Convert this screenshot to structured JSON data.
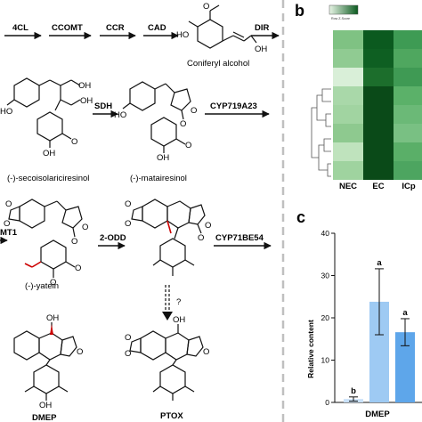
{
  "pathway": {
    "enzymes_top": [
      "4CL",
      "CCOMT",
      "CCR",
      "CAD",
      "DIR"
    ],
    "enzymes_mid": [
      "SDH",
      "CYP719A23"
    ],
    "enzymes_low": [
      "MT1",
      "2-ODD",
      "CYP71BE54"
    ],
    "question_mark": "?",
    "compounds": {
      "coniferyl": "Coniferyl alcohol",
      "secoiso": "(-)-secoisolariciresinol",
      "matairesinol": "(-)-matairesinol",
      "yatein": "(-)-yatein",
      "dmep": "DMEP",
      "ptox": "PTOX"
    },
    "colors": {
      "highlight_bond": "#cc0000",
      "ink": "#111111"
    }
  },
  "panel_b": {
    "label": "b",
    "legend_caption": "Row Z-Score",
    "columns": [
      "NEC",
      "EC",
      "ICp"
    ],
    "heatmap_colors": [
      [
        "#7fc283",
        "#0b5a1f",
        "#3e9b54"
      ],
      [
        "#90cb92",
        "#0e5f22",
        "#4fa75f"
      ],
      [
        "#d9efd8",
        "#1c6e2c",
        "#3f9a54"
      ],
      [
        "#a9d8a9",
        "#0a4a18",
        "#5bb169"
      ],
      [
        "#a1d4a1",
        "#0a4a18",
        "#6bb977"
      ],
      [
        "#8ec98f",
        "#0a4a18",
        "#79c083"
      ],
      [
        "#bfe3bd",
        "#0a4a18",
        "#5aaf68"
      ],
      [
        "#9fd39f",
        "#0a4a18",
        "#4da560"
      ]
    ]
  },
  "panel_c": {
    "label": "c",
    "x_group": "DMEP"
  },
  "chart_data": {
    "type": "bar",
    "categories": [
      "b",
      "a",
      "a"
    ],
    "values": [
      0.8,
      23.8,
      16.6
    ],
    "errors": [
      0.5,
      7.8,
      3.2
    ],
    "significance": [
      "b",
      "a",
      "a"
    ],
    "bar_colors": [
      "#c9e1f8",
      "#9ecaf3",
      "#5ea6ea"
    ],
    "ylabel": "Relative content",
    "xlabel": "DMEP",
    "ylim": [
      0,
      40
    ],
    "yticks": [
      0,
      10,
      20,
      30,
      40
    ]
  }
}
